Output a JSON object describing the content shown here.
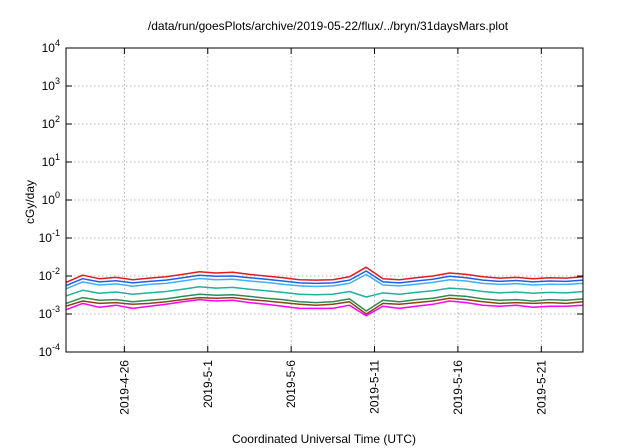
{
  "chart_data": {
    "type": "line",
    "title": "/data/run/goesPlots/archive/2019-05-22/flux/../bryn/31daysMars.plot",
    "xlabel": "Coordinated Universal Time (UTC)",
    "ylabel": "cGy/day",
    "yscale": "log",
    "ylim": [
      0.0001,
      10000
    ],
    "xlim": [
      "2019-04-22T12:00",
      "2019-05-23T12:00"
    ],
    "grid": true,
    "legend": "none",
    "y_tick_labels": [
      {
        "value": 0.0001,
        "base": "10",
        "exp": "-4"
      },
      {
        "value": 0.001,
        "base": "10",
        "exp": "-3"
      },
      {
        "value": 0.01,
        "base": "10",
        "exp": "-2"
      },
      {
        "value": 0.1,
        "base": "10",
        "exp": "-1"
      },
      {
        "value": 1,
        "base": "10",
        "exp": "0"
      },
      {
        "value": 10,
        "base": "10",
        "exp": "1"
      },
      {
        "value": 100,
        "base": "10",
        "exp": "2"
      },
      {
        "value": 1000,
        "base": "10",
        "exp": "3"
      },
      {
        "value": 10000,
        "base": "10",
        "exp": "4"
      }
    ],
    "x_ticks": [
      {
        "date": "2019-04-26",
        "label": "2019-4-26"
      },
      {
        "date": "2019-05-01",
        "label": "2019-5-1"
      },
      {
        "date": "2019-05-06",
        "label": "2019-5-6"
      },
      {
        "date": "2019-05-11",
        "label": "2019-5-11"
      },
      {
        "date": "2019-05-16",
        "label": "2019-5-16"
      },
      {
        "date": "2019-05-21",
        "label": "2019-5-21"
      }
    ],
    "x": [
      "2019-04-22T12:00",
      "2019-04-23T12:00",
      "2019-04-24T12:00",
      "2019-04-25T12:00",
      "2019-04-26T12:00",
      "2019-04-27T12:00",
      "2019-04-28T12:00",
      "2019-04-29T12:00",
      "2019-04-30T12:00",
      "2019-05-01T12:00",
      "2019-05-02T12:00",
      "2019-05-03T12:00",
      "2019-05-04T12:00",
      "2019-05-05T12:00",
      "2019-05-06T12:00",
      "2019-05-07T12:00",
      "2019-05-08T12:00",
      "2019-05-09T12:00",
      "2019-05-10T12:00",
      "2019-05-11T12:00",
      "2019-05-12T12:00",
      "2019-05-13T12:00",
      "2019-05-14T12:00",
      "2019-05-15T12:00",
      "2019-05-16T12:00",
      "2019-05-17T12:00",
      "2019-05-18T12:00",
      "2019-05-19T12:00",
      "2019-05-20T12:00",
      "2019-05-21T12:00",
      "2019-05-22T12:00",
      "2019-05-23T12:00"
    ],
    "series": [
      {
        "color": "#e41a1c",
        "values": [
          0.0068,
          0.0105,
          0.0085,
          0.0092,
          0.008,
          0.0088,
          0.0095,
          0.011,
          0.013,
          0.012,
          0.0125,
          0.011,
          0.01,
          0.009,
          0.008,
          0.0078,
          0.008,
          0.0095,
          0.017,
          0.0085,
          0.008,
          0.009,
          0.01,
          0.012,
          0.011,
          0.0095,
          0.0088,
          0.0092,
          0.0085,
          0.009,
          0.0088,
          0.0095
        ]
      },
      {
        "color": "#1f5fe8",
        "values": [
          0.0056,
          0.0085,
          0.007,
          0.0075,
          0.0066,
          0.0072,
          0.0078,
          0.009,
          0.0105,
          0.0098,
          0.01,
          0.009,
          0.0082,
          0.0074,
          0.0066,
          0.0064,
          0.0066,
          0.0078,
          0.0135,
          0.007,
          0.0066,
          0.0074,
          0.0082,
          0.0098,
          0.009,
          0.0078,
          0.0072,
          0.0076,
          0.007,
          0.0074,
          0.0072,
          0.0078
        ]
      },
      {
        "color": "#3db0ff",
        "values": [
          0.0046,
          0.007,
          0.0058,
          0.0062,
          0.0054,
          0.006,
          0.0064,
          0.0074,
          0.0086,
          0.008,
          0.0082,
          0.0074,
          0.0068,
          0.0061,
          0.0055,
          0.0053,
          0.0055,
          0.0064,
          0.011,
          0.0058,
          0.0055,
          0.0061,
          0.0068,
          0.008,
          0.0074,
          0.0064,
          0.006,
          0.0063,
          0.0058,
          0.0061,
          0.006,
          0.0064
        ]
      },
      {
        "color": "#20b2a0",
        "values": [
          0.003,
          0.0042,
          0.0035,
          0.0038,
          0.0033,
          0.0036,
          0.0039,
          0.0045,
          0.0052,
          0.0048,
          0.005,
          0.0045,
          0.0041,
          0.0037,
          0.0033,
          0.0032,
          0.0033,
          0.0039,
          0.0028,
          0.0036,
          0.0033,
          0.0037,
          0.0041,
          0.0048,
          0.0045,
          0.0039,
          0.0036,
          0.0038,
          0.0035,
          0.0037,
          0.0036,
          0.0039
        ]
      },
      {
        "color": "#2e8b57",
        "values": [
          0.0019,
          0.0027,
          0.0023,
          0.0024,
          0.0021,
          0.0023,
          0.0025,
          0.0029,
          0.0033,
          0.0031,
          0.0032,
          0.0029,
          0.0026,
          0.0024,
          0.0021,
          0.002,
          0.0021,
          0.0025,
          0.0012,
          0.0023,
          0.0021,
          0.0024,
          0.0026,
          0.0031,
          0.0029,
          0.0025,
          0.0023,
          0.0024,
          0.0022,
          0.0024,
          0.0023,
          0.0025
        ]
      },
      {
        "color": "#8b4513",
        "values": [
          0.0016,
          0.0022,
          0.0019,
          0.002,
          0.0018,
          0.0019,
          0.0021,
          0.0024,
          0.0027,
          0.0026,
          0.0027,
          0.0024,
          0.0022,
          0.002,
          0.0018,
          0.0017,
          0.0018,
          0.0021,
          0.001,
          0.0019,
          0.0018,
          0.002,
          0.0022,
          0.0026,
          0.0024,
          0.0021,
          0.0019,
          0.002,
          0.0019,
          0.002,
          0.0019,
          0.0021
        ]
      },
      {
        "color": "#ff00ff",
        "values": [
          0.0013,
          0.0019,
          0.0015,
          0.0017,
          0.0014,
          0.0016,
          0.0018,
          0.0021,
          0.0024,
          0.0022,
          0.0023,
          0.002,
          0.0018,
          0.0016,
          0.0014,
          0.0014,
          0.0014,
          0.0017,
          0.0009,
          0.0016,
          0.0014,
          0.0016,
          0.0018,
          0.0022,
          0.002,
          0.0017,
          0.0016,
          0.0017,
          0.0015,
          0.0016,
          0.0016,
          0.0017
        ]
      }
    ]
  }
}
